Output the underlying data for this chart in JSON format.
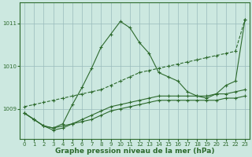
{
  "xlabel": "Graphe pression niveau de la mer (hPa)",
  "background_color": "#cce8e0",
  "grid_color": "#99bbbb",
  "line_color": "#2d6a2d",
  "xlim": [
    -0.5,
    23.5
  ],
  "ylim": [
    1008.3,
    1011.5
  ],
  "yticks": [
    1009,
    1010,
    1011
  ],
  "xticks": [
    0,
    1,
    2,
    3,
    4,
    5,
    6,
    7,
    8,
    9,
    10,
    11,
    12,
    13,
    14,
    15,
    16,
    17,
    18,
    19,
    20,
    21,
    22,
    23
  ],
  "series": [
    {
      "x": [
        0,
        1,
        2,
        3,
        4,
        5,
        6,
        7,
        8,
        9,
        10,
        11,
        12,
        13,
        14,
        15,
        16,
        17,
        18,
        19,
        20,
        21,
        22,
        23
      ],
      "y": [
        1009.05,
        1009.1,
        1009.15,
        1009.2,
        1009.25,
        1009.3,
        1009.35,
        1009.4,
        1009.45,
        1009.55,
        1009.65,
        1009.75,
        1009.85,
        1009.9,
        1009.95,
        1010.0,
        1010.05,
        1010.1,
        1010.15,
        1010.2,
        1010.25,
        1010.3,
        1010.35,
        1011.1
      ],
      "linestyle": "--",
      "marker": "+"
    },
    {
      "x": [
        0,
        1,
        2,
        3,
        4,
        5,
        6,
        7,
        8,
        9,
        10,
        11,
        12,
        13,
        14,
        15,
        16,
        17,
        18,
        19,
        20,
        21,
        22,
        23
      ],
      "y": [
        1008.9,
        1008.75,
        1008.6,
        1008.55,
        1008.65,
        1009.1,
        1009.5,
        1009.95,
        1010.45,
        1010.75,
        1011.05,
        1010.9,
        1010.55,
        1010.3,
        1009.85,
        1009.75,
        1009.65,
        1009.4,
        1009.3,
        1009.25,
        1009.35,
        1009.55,
        1009.65,
        1011.1
      ],
      "linestyle": "-",
      "marker": "+"
    },
    {
      "x": [
        0,
        1,
        2,
        3,
        4,
        5,
        6,
        7,
        8,
        9,
        10,
        11,
        12,
        13,
        14,
        15,
        16,
        17,
        18,
        19,
        20,
        21,
        22,
        23
      ],
      "y": [
        1008.9,
        1008.75,
        1008.6,
        1008.55,
        1008.6,
        1008.65,
        1008.7,
        1008.75,
        1008.85,
        1008.95,
        1009.0,
        1009.05,
        1009.1,
        1009.15,
        1009.2,
        1009.2,
        1009.2,
        1009.2,
        1009.2,
        1009.2,
        1009.2,
        1009.25,
        1009.25,
        1009.3
      ],
      "linestyle": "-",
      "marker": "+"
    },
    {
      "x": [
        0,
        1,
        2,
        3,
        4,
        5,
        6,
        7,
        8,
        9,
        10,
        11,
        12,
        13,
        14,
        15,
        16,
        17,
        18,
        19,
        20,
        21,
        22,
        23
      ],
      "y": [
        1008.9,
        1008.75,
        1008.6,
        1008.5,
        1008.55,
        1008.65,
        1008.75,
        1008.85,
        1008.95,
        1009.05,
        1009.1,
        1009.15,
        1009.2,
        1009.25,
        1009.3,
        1009.3,
        1009.3,
        1009.3,
        1009.3,
        1009.3,
        1009.35,
        1009.35,
        1009.4,
        1009.45
      ],
      "linestyle": "-",
      "marker": "+"
    }
  ]
}
